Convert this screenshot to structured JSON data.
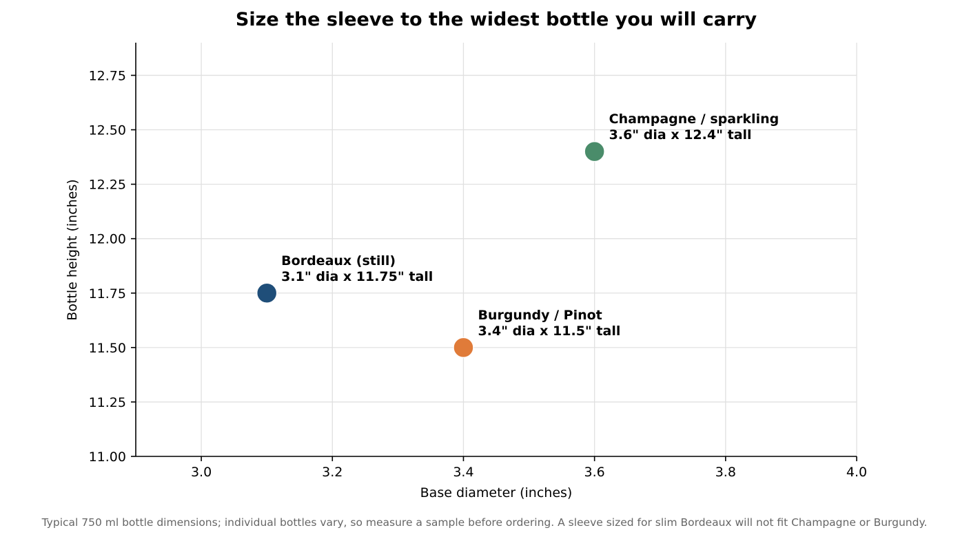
{
  "chart_data": {
    "type": "scatter",
    "title": "Size the sleeve to the widest bottle you will carry",
    "xlabel": "Base diameter (inches)",
    "ylabel": "Bottle height (inches)",
    "xlim": [
      2.9,
      4.0
    ],
    "ylim": [
      11.0,
      12.9
    ],
    "x_ticks": [
      3.0,
      3.2,
      3.4,
      3.6,
      3.8,
      4.0
    ],
    "x_tick_labels": [
      "3.0",
      "3.2",
      "3.4",
      "3.6",
      "3.8",
      "4.0"
    ],
    "y_ticks": [
      11.0,
      11.25,
      11.5,
      11.75,
      12.0,
      12.25,
      12.5,
      12.75
    ],
    "y_tick_labels": [
      "11.00",
      "11.25",
      "11.50",
      "11.75",
      "12.00",
      "12.25",
      "12.50",
      "12.75"
    ],
    "grid": true,
    "points": [
      {
        "x": 3.1,
        "y": 11.75,
        "color": "#1f4e79",
        "label_line1": "Bordeaux (still)",
        "label_line2": "3.1\" dia x 11.75\" tall"
      },
      {
        "x": 3.4,
        "y": 11.5,
        "color": "#e07b39",
        "label_line1": "Burgundy / Pinot",
        "label_line2": "3.4\" dia x 11.5\" tall"
      },
      {
        "x": 3.6,
        "y": 12.4,
        "color": "#4a8c6a",
        "label_line1": "Champagne / sparkling",
        "label_line2": "3.6\" dia x 12.4\" tall"
      }
    ],
    "footnote": "Typical 750 ml bottle dimensions; individual bottles vary, so measure a sample before ordering. A sleeve sized for slim Bordeaux will not fit Champagne or Burgundy."
  }
}
